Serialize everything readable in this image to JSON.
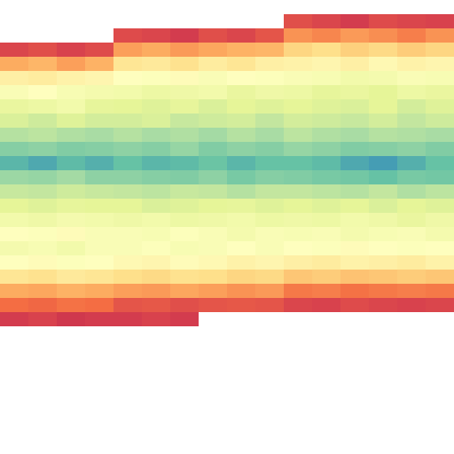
{
  "chart_data": {
    "type": "heatmap",
    "color": "Spectral",
    "color_range": [
      0,
      1
    ],
    "tick_labels": false,
    "cells": [
      [
        null,
        null,
        null,
        null,
        null,
        null,
        null,
        null,
        null,
        null,
        null,
        null,
        null,
        null,
        null,
        null
      ],
      [
        null,
        null,
        null,
        null,
        null,
        null,
        null,
        null,
        null,
        null,
        0.14,
        0.12,
        0.1,
        0.13,
        0.12,
        0.11
      ],
      [
        null,
        null,
        null,
        null,
        0.13,
        0.12,
        0.1,
        0.14,
        0.12,
        0.15,
        0.26,
        0.24,
        0.27,
        0.25,
        0.23,
        0.26
      ],
      [
        0.12,
        0.14,
        0.11,
        0.13,
        0.28,
        0.3,
        0.27,
        0.29,
        0.31,
        0.32,
        0.38,
        0.4,
        0.37,
        0.39,
        0.36,
        0.38
      ],
      [
        0.3,
        0.32,
        0.28,
        0.31,
        0.42,
        0.43,
        0.41,
        0.44,
        0.42,
        0.45,
        0.46,
        0.47,
        0.45,
        0.48,
        0.46,
        0.47
      ],
      [
        0.45,
        0.44,
        0.46,
        0.47,
        0.5,
        0.51,
        0.49,
        0.52,
        0.5,
        0.51,
        0.52,
        0.53,
        0.55,
        0.54,
        0.52,
        0.53
      ],
      [
        0.52,
        0.5,
        0.53,
        0.54,
        0.55,
        0.57,
        0.56,
        0.55,
        0.58,
        0.56,
        0.57,
        0.59,
        0.58,
        0.6,
        0.57,
        0.58
      ],
      [
        0.58,
        0.57,
        0.55,
        0.59,
        0.6,
        0.61,
        0.59,
        0.62,
        0.6,
        0.61,
        0.6,
        0.61,
        0.62,
        0.6,
        0.63,
        0.61
      ],
      [
        0.62,
        0.64,
        0.61,
        0.63,
        0.63,
        0.62,
        0.65,
        0.64,
        0.63,
        0.66,
        0.63,
        0.64,
        0.65,
        0.63,
        0.66,
        0.64
      ],
      [
        0.68,
        0.67,
        0.69,
        0.7,
        0.68,
        0.7,
        0.69,
        0.71,
        0.68,
        0.7,
        0.67,
        0.69,
        0.7,
        0.68,
        0.69,
        0.7
      ],
      [
        0.75,
        0.74,
        0.76,
        0.75,
        0.74,
        0.75,
        0.73,
        0.76,
        0.74,
        0.75,
        0.73,
        0.74,
        0.76,
        0.75,
        0.74,
        0.76
      ],
      [
        0.82,
        0.84,
        0.81,
        0.83,
        0.8,
        0.82,
        0.81,
        0.79,
        0.82,
        0.8,
        0.8,
        0.81,
        0.84,
        0.86,
        0.83,
        0.8
      ],
      [
        0.72,
        0.73,
        0.71,
        0.74,
        0.74,
        0.75,
        0.76,
        0.74,
        0.77,
        0.75,
        0.76,
        0.77,
        0.78,
        0.8,
        0.77,
        0.78
      ],
      [
        0.65,
        0.66,
        0.64,
        0.65,
        0.66,
        0.67,
        0.65,
        0.66,
        0.68,
        0.66,
        0.66,
        0.67,
        0.68,
        0.66,
        0.69,
        0.67
      ],
      [
        0.6,
        0.61,
        0.59,
        0.6,
        0.6,
        0.62,
        0.61,
        0.6,
        0.59,
        0.61,
        0.6,
        0.61,
        0.6,
        0.62,
        0.6,
        0.61
      ],
      [
        0.55,
        0.56,
        0.54,
        0.55,
        0.56,
        0.55,
        0.57,
        0.56,
        0.55,
        0.57,
        0.56,
        0.57,
        0.55,
        0.56,
        0.58,
        0.56
      ],
      [
        0.5,
        0.51,
        0.49,
        0.52,
        0.52,
        0.53,
        0.51,
        0.52,
        0.54,
        0.52,
        0.53,
        0.52,
        0.54,
        0.53,
        0.52,
        0.54
      ],
      [
        0.54,
        0.53,
        0.55,
        0.52,
        0.52,
        0.51,
        0.53,
        0.52,
        0.5,
        0.52,
        0.5,
        0.51,
        0.49,
        0.5,
        0.51,
        0.5
      ],
      [
        0.5,
        0.49,
        0.51,
        0.5,
        0.48,
        0.47,
        0.49,
        0.48,
        0.46,
        0.47,
        0.45,
        0.44,
        0.46,
        0.45,
        0.44,
        0.46
      ],
      [
        0.42,
        0.41,
        0.43,
        0.42,
        0.4,
        0.39,
        0.41,
        0.4,
        0.38,
        0.39,
        0.35,
        0.36,
        0.34,
        0.35,
        0.36,
        0.35
      ],
      [
        0.3,
        0.29,
        0.31,
        0.3,
        0.28,
        0.27,
        0.29,
        0.28,
        0.26,
        0.27,
        0.22,
        0.23,
        0.21,
        0.22,
        0.23,
        0.22
      ],
      [
        0.2,
        0.19,
        0.21,
        0.2,
        0.15,
        0.16,
        0.14,
        0.15,
        0.16,
        0.15,
        0.12,
        0.11,
        0.13,
        0.12,
        0.11,
        0.12
      ],
      [
        0.1,
        0.11,
        0.09,
        0.1,
        0.1,
        0.11,
        0.1,
        null,
        null,
        null,
        null,
        null,
        null,
        null,
        null,
        null
      ],
      [
        null,
        null,
        null,
        null,
        null,
        null,
        null,
        null,
        null,
        null,
        null,
        null,
        null,
        null,
        null,
        null
      ],
      [
        null,
        null,
        null,
        null,
        null,
        null,
        null,
        null,
        null,
        null,
        null,
        null,
        null,
        null,
        null,
        null
      ],
      [
        null,
        null,
        null,
        null,
        null,
        null,
        null,
        null,
        null,
        null,
        null,
        null,
        null,
        null,
        null,
        null
      ],
      [
        null,
        null,
        null,
        null,
        null,
        null,
        null,
        null,
        null,
        null,
        null,
        null,
        null,
        null,
        null,
        null
      ],
      [
        null,
        null,
        null,
        null,
        null,
        null,
        null,
        null,
        null,
        null,
        null,
        null,
        null,
        null,
        null,
        null
      ],
      [
        null,
        null,
        null,
        null,
        null,
        null,
        null,
        null,
        null,
        null,
        null,
        null,
        null,
        null,
        null,
        null
      ],
      [
        null,
        null,
        null,
        null,
        null,
        null,
        null,
        null,
        null,
        null,
        null,
        null,
        null,
        null,
        null,
        null
      ],
      [
        null,
        null,
        null,
        null,
        null,
        null,
        null,
        null,
        null,
        null,
        null,
        null,
        null,
        null,
        null,
        null
      ],
      [
        null,
        null,
        null,
        null,
        null,
        null,
        null,
        null,
        null,
        null,
        null,
        null,
        null,
        null,
        null,
        null
      ]
    ]
  }
}
